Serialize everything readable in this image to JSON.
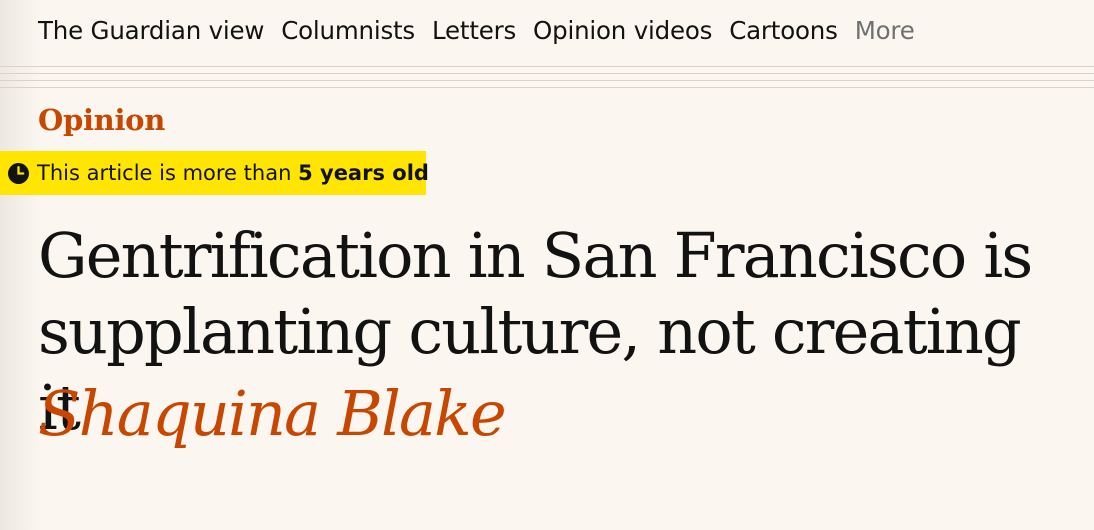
{
  "subnav": {
    "items": [
      "The Guardian view",
      "Columnists",
      "Letters",
      "Opinion videos",
      "Cartoons"
    ],
    "more_label": "More"
  },
  "section_label": "Opinion",
  "age_warning": {
    "prefix": "This article is more than",
    "age": "5 years old",
    "icon": "clock-icon"
  },
  "article": {
    "headline": "Gentrification in San Francisco is supplanting culture, not creating it",
    "byline": "Shaquina Blake"
  },
  "colors": {
    "accent": "#c74600",
    "highlight": "#ffe500",
    "background": "#fbf6ef"
  }
}
